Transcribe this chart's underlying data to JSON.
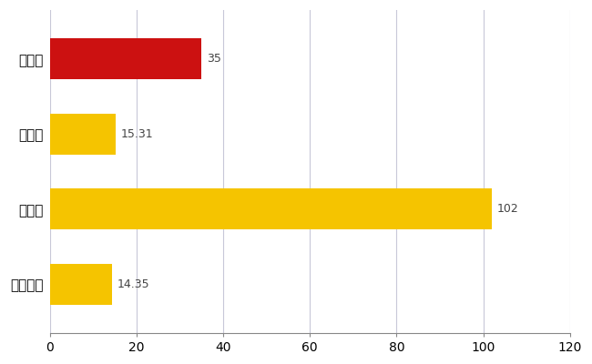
{
  "categories": [
    "富士市",
    "県平均",
    "県最大",
    "全国平均"
  ],
  "values": [
    35,
    15.31,
    102,
    14.35
  ],
  "value_labels": [
    "35",
    "15.31",
    "102",
    "14.35"
  ],
  "bar_colors": [
    "#cc1111",
    "#f5c400",
    "#f5c400",
    "#f5c400"
  ],
  "label_color": "#888888",
  "xlim": [
    0,
    120
  ],
  "xticks": [
    0,
    20,
    40,
    60,
    80,
    100,
    120
  ],
  "background_color": "#ffffff",
  "grid_color": "#c8c8d8",
  "bar_height": 0.55
}
